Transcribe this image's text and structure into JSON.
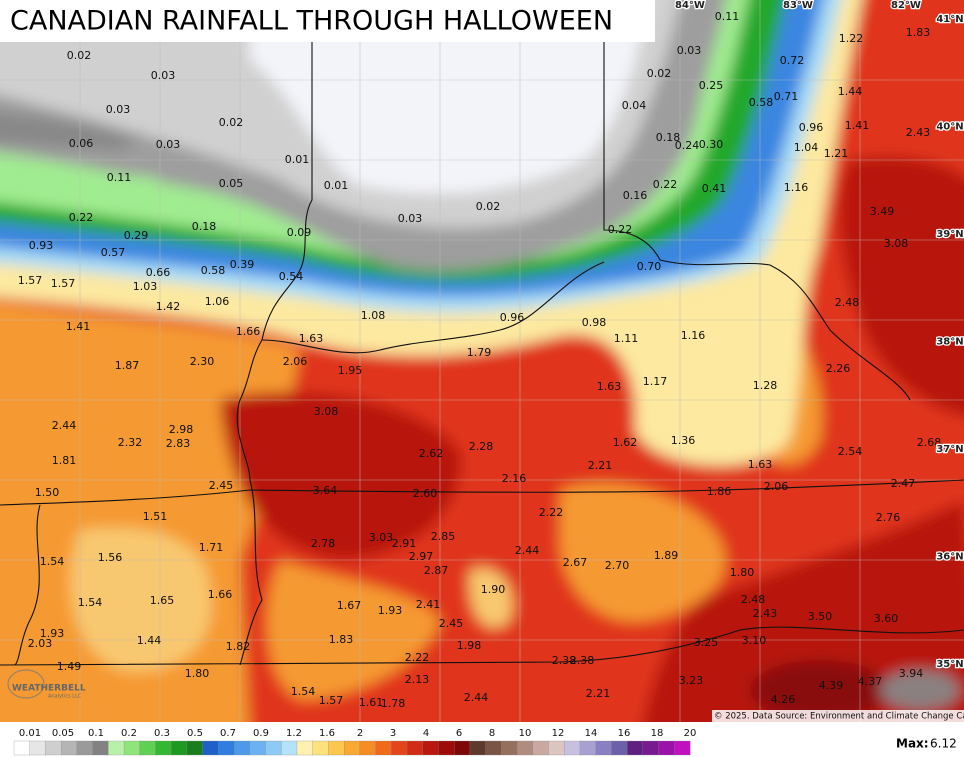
{
  "title": "CANADIAN RAINFALL THROUGH HALLOWEEN",
  "longitude_labels": [
    "84°W",
    "83°W",
    "82°W"
  ],
  "latitude_labels": [
    "41°N",
    "40°N",
    "39°N",
    "38°N",
    "37°N",
    "36°N",
    "35°N"
  ],
  "rainfall_values": [
    "0.02",
    "0.03",
    "0.03",
    "0.02",
    "0.06",
    "0.03",
    "0.01",
    "0.11",
    "0.05",
    "0.01",
    "0.03",
    "0.02",
    "0.22",
    "0.18",
    "0.09",
    "0.29",
    "0.93",
    "0.57",
    "0.66",
    "0.58",
    "0.39",
    "0.54",
    "1.57",
    "1.57",
    "1.03",
    "1.06",
    "1.42",
    "1.08",
    "0.96",
    "0.98",
    "1.41",
    "1.66",
    "1.63",
    "1.11",
    "1.16",
    "1.79",
    "2.06",
    "1.87",
    "2.30",
    "1.95",
    "1.63",
    "1.17",
    "1.28",
    "3.08",
    "2.44",
    "2.98",
    "2.32",
    "2.83",
    "1.62",
    "1.36",
    "2.62",
    "2.28",
    "2.16",
    "2.21",
    "1.81",
    "2.45",
    "1.63",
    "1.50",
    "3.64",
    "2.60",
    "1.86",
    "2.06",
    "1.51",
    "2.22",
    "1.71",
    "2.78",
    "3.03",
    "2.91",
    "2.85",
    "2.97",
    "2.44",
    "1.89",
    "1.56",
    "1.54",
    "2.87",
    "2.67",
    "2.70",
    "1.80",
    "1.54",
    "1.65",
    "1.66",
    "1.67",
    "1.93",
    "2.41",
    "1.90",
    "2.48",
    "2.43",
    "3.50",
    "3.60",
    "1.93",
    "2.03",
    "1.44",
    "1.82",
    "1.83",
    "2.45",
    "1.98",
    "3.25",
    "3.10",
    "1.49",
    "1.80",
    "2.22",
    "2.38",
    "2.38",
    "3.94",
    "2.13",
    "3.23",
    "4.39",
    "4.37",
    "1.54",
    "1.57",
    "1.61",
    "1.78",
    "2.44",
    "2.21",
    "4.26",
    "0.11",
    "0.03",
    "0.02",
    "0.25",
    "0.72",
    "1.22",
    "1.83",
    "0.04",
    "0.58",
    "0.71",
    "1.44",
    "0.96",
    "1.41",
    "2.43",
    "0.18",
    "0.24",
    "0.30",
    "1.04",
    "1.21",
    "0.22",
    "0.41",
    "1.16",
    "0.16",
    "3.49",
    "0.22",
    "3.08",
    "0.70",
    "2.48",
    "2.26",
    "2.68",
    "2.54",
    "2.47",
    "2.76"
  ],
  "legend": {
    "ticks": [
      "0.01",
      "0.05",
      "0.1",
      "0.2",
      "0.3",
      "0.5",
      "0.7",
      "0.9",
      "1.2",
      "1.6",
      "2",
      "3",
      "4",
      "6",
      "8",
      "10",
      "12",
      "14",
      "16",
      "18",
      "20"
    ]
  },
  "copyright": "© 2025. Data Source: Environment and Climate Change Canada.",
  "max": {
    "label": "Max:",
    "value": "6.12"
  },
  "logo": {
    "name": "WEATHERBELL",
    "subtitle": "Analytics LLC"
  }
}
